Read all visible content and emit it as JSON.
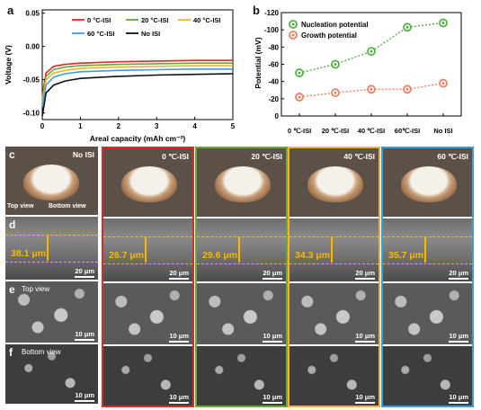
{
  "panels": {
    "a": "a",
    "b": "b",
    "c": "c",
    "d": "d",
    "e": "e",
    "f": "f"
  },
  "chart_data": [
    {
      "type": "line",
      "xlabel": "Areal capacity (mAh cm⁻²)",
      "ylabel": "Voltage (V)",
      "xlim": [
        0,
        5
      ],
      "ylim": [
        -0.11,
        0.055
      ],
      "xticks": [
        "0",
        "1",
        "2",
        "3",
        "4",
        "5"
      ],
      "yticks": [
        "-0.10",
        "-0.05",
        "0.00",
        "0.05"
      ],
      "legend_position": "top",
      "series": [
        {
          "name": "0 °C-ISI",
          "color": "#e8242a",
          "x": [
            0,
            0.1,
            0.3,
            0.6,
            1,
            2,
            3,
            4,
            5
          ],
          "y": [
            -0.075,
            -0.04,
            -0.03,
            -0.027,
            -0.025,
            -0.023,
            -0.022,
            -0.021,
            -0.021
          ]
        },
        {
          "name": "20 °C-ISI",
          "color": "#6aa935",
          "x": [
            0,
            0.1,
            0.3,
            0.6,
            1,
            2,
            3,
            4,
            5
          ],
          "y": [
            -0.08,
            -0.045,
            -0.035,
            -0.031,
            -0.029,
            -0.027,
            -0.026,
            -0.025,
            -0.025
          ]
        },
        {
          "name": "40 °C-ISI",
          "color": "#f2b233",
          "x": [
            0,
            0.1,
            0.3,
            0.6,
            1,
            2,
            3,
            4,
            5
          ],
          "y": [
            -0.085,
            -0.05,
            -0.04,
            -0.036,
            -0.033,
            -0.031,
            -0.03,
            -0.029,
            -0.029
          ]
        },
        {
          "name": "60 °C-ISI",
          "color": "#3aa0d8",
          "x": [
            0,
            0.1,
            0.3,
            0.6,
            1,
            2,
            3,
            4,
            5
          ],
          "y": [
            -0.09,
            -0.058,
            -0.046,
            -0.041,
            -0.038,
            -0.036,
            -0.035,
            -0.034,
            -0.034
          ]
        },
        {
          "name": "No ISI",
          "color": "#111111",
          "x": [
            0,
            0.1,
            0.3,
            0.6,
            1,
            2,
            3,
            4,
            5
          ],
          "y": [
            -0.105,
            -0.07,
            -0.058,
            -0.052,
            -0.048,
            -0.045,
            -0.043,
            -0.042,
            -0.041
          ]
        }
      ]
    },
    {
      "type": "scatter",
      "ylabel": "Potential (mV)",
      "categories": [
        "0 ℃-ISI",
        "20 ℃-ISI",
        "40 ℃-ISI",
        "60℃-ISI",
        "No ISI"
      ],
      "ylim": [
        0,
        -120
      ],
      "yticks": [
        "0",
        "-20",
        "-40",
        "-60",
        "-80",
        "-100",
        "-120"
      ],
      "legend_position": "top-left",
      "series": [
        {
          "name": "Nucleation potential",
          "color": "#55b047",
          "values": [
            -50,
            -60,
            -75,
            -103,
            -108
          ]
        },
        {
          "name": "Growth potential",
          "color": "#f08060",
          "values": [
            -22,
            -27,
            -31,
            -31,
            -38
          ]
        }
      ]
    }
  ],
  "micrographs": {
    "columns": [
      {
        "label": "No ISI",
        "border": "none",
        "thickness": "38.1 μm"
      },
      {
        "label": "0 ℃-ISI",
        "border": "#e8242a",
        "thickness": "26.7 μm"
      },
      {
        "label": "20 ℃-ISI",
        "border": "#6aa935",
        "thickness": "29.6 μm"
      },
      {
        "label": "40 ℃-ISI",
        "border": "#f2b233",
        "thickness": "34.3 μm"
      },
      {
        "label": "60 ℃-ISI",
        "border": "#3aa0d8",
        "thickness": "35.7 μm"
      }
    ],
    "top_view_label": "Top view",
    "bottom_view_label": "Bottom view",
    "scale_label": "20 μm",
    "scale_label_small": "10 μm"
  }
}
